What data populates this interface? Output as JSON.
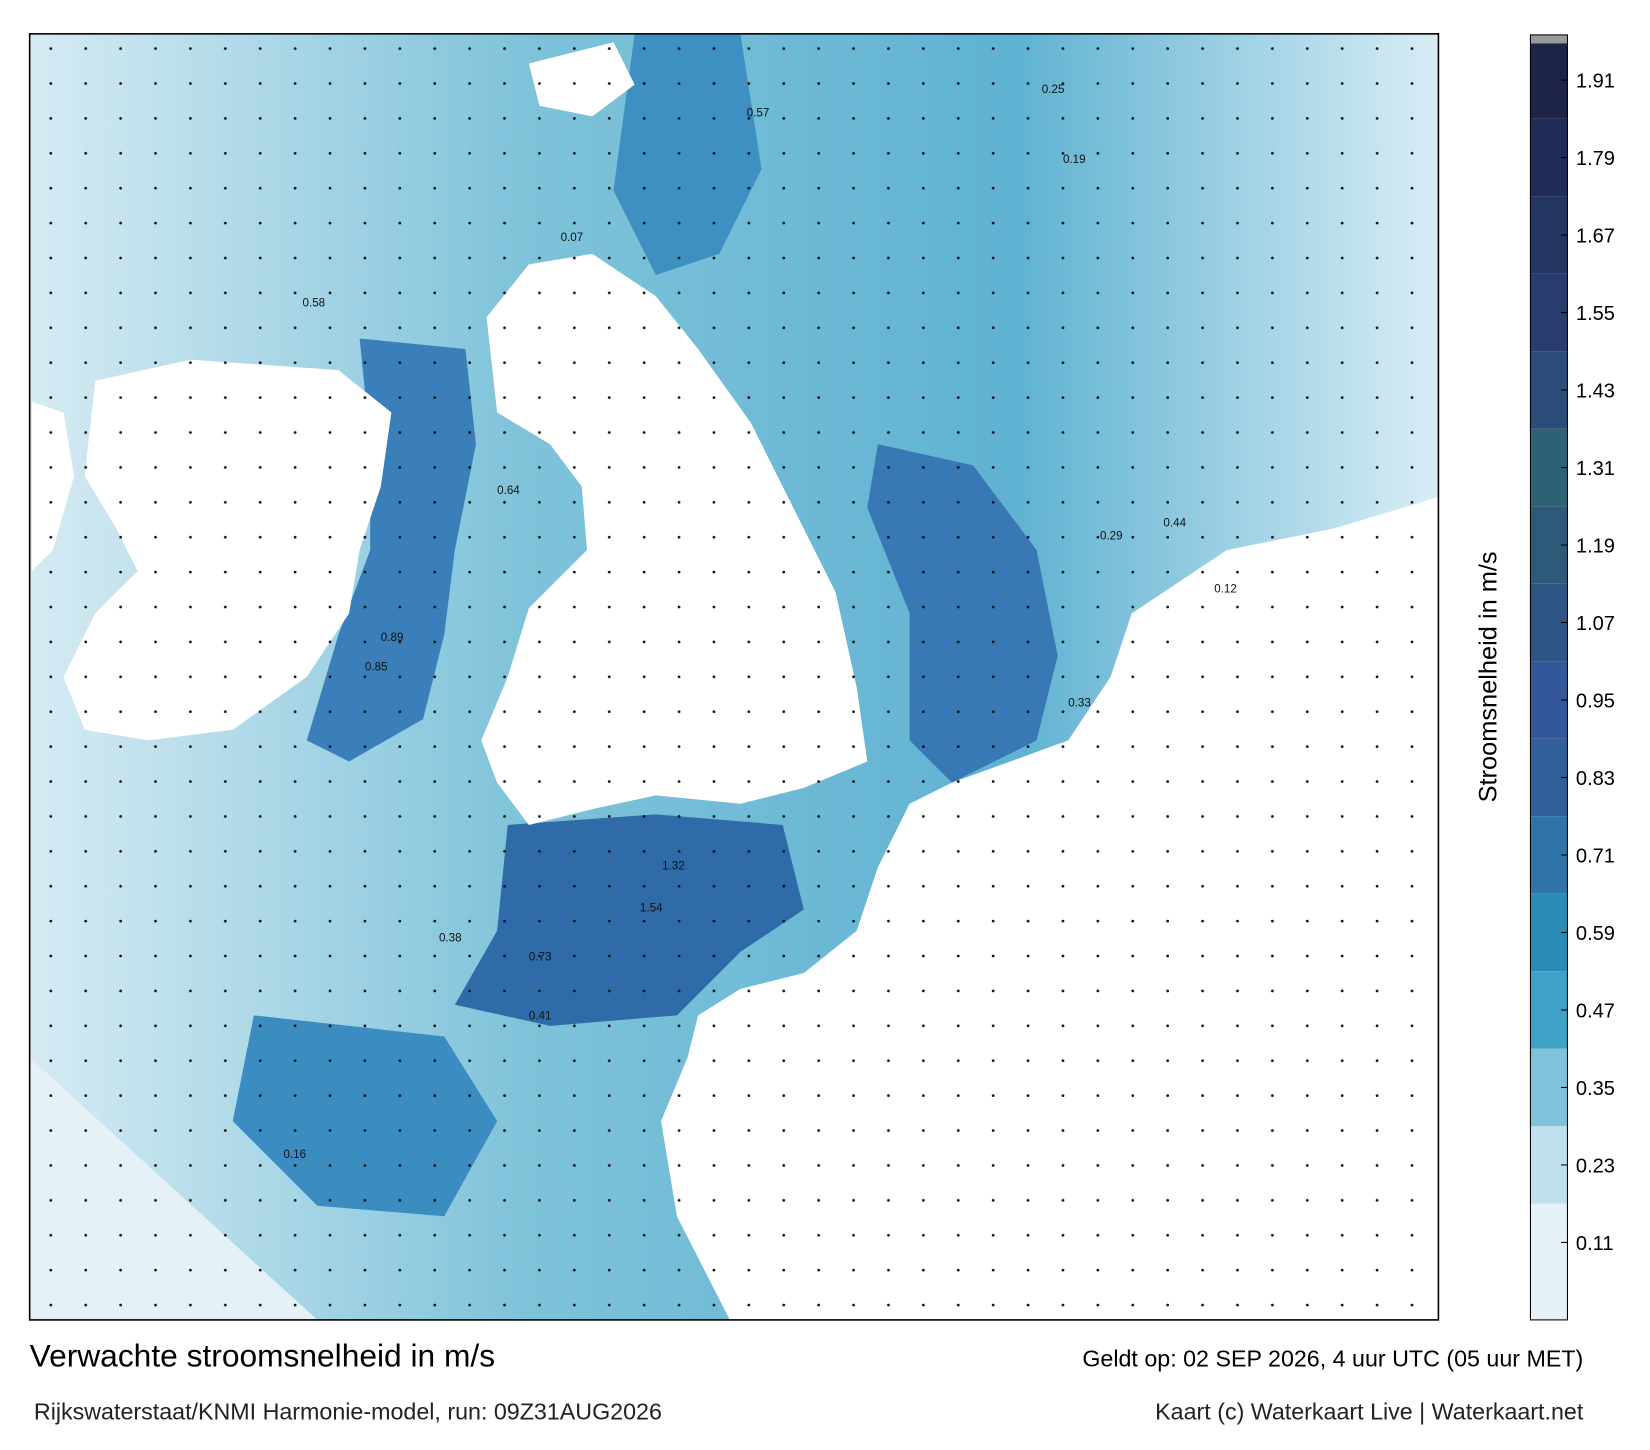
{
  "map": {
    "title": "Verwachte stroomsnelheid in m/s",
    "subtitle": "Rijkswaterstaat/KNMI Harmonie-model, run: 09Z31AUG2026",
    "valid_time": "Geldt op: 02 SEP 2026, 4 uur UTC (05 uur MET)",
    "credit": "Kaart (c) Waterkaart Live | Waterkaart.net",
    "colorbar": {
      "label": "Stroomsnelheid in m/s",
      "lim": [
        -0.01,
        1.98
      ],
      "ticks": [
        0.11,
        0.23,
        0.35,
        0.47,
        0.59,
        0.71,
        0.83,
        0.95,
        1.07,
        1.19,
        1.31,
        1.43,
        1.55,
        1.67,
        1.79,
        1.91
      ],
      "colors": [
        "#e6f2f7",
        "#bfe0ec",
        "#7fc3da",
        "#3fa2c6",
        "#2a8cb6",
        "#2e74a8",
        "#305f9a",
        "#33579a",
        "#2f5486",
        "#2e5a7a",
        "#2d6274",
        "#2b4b78",
        "#283d6e",
        "#253562",
        "#212c56",
        "#1d2447"
      ]
    },
    "current_labels": [
      1.54,
      1.32,
      0.89,
      0.85,
      0.58,
      0.57,
      0.44,
      0.33,
      0.25,
      0.19,
      0.73,
      0.64,
      0.41,
      0.12,
      0.07,
      0.38,
      0.29,
      0.16
    ]
  }
}
